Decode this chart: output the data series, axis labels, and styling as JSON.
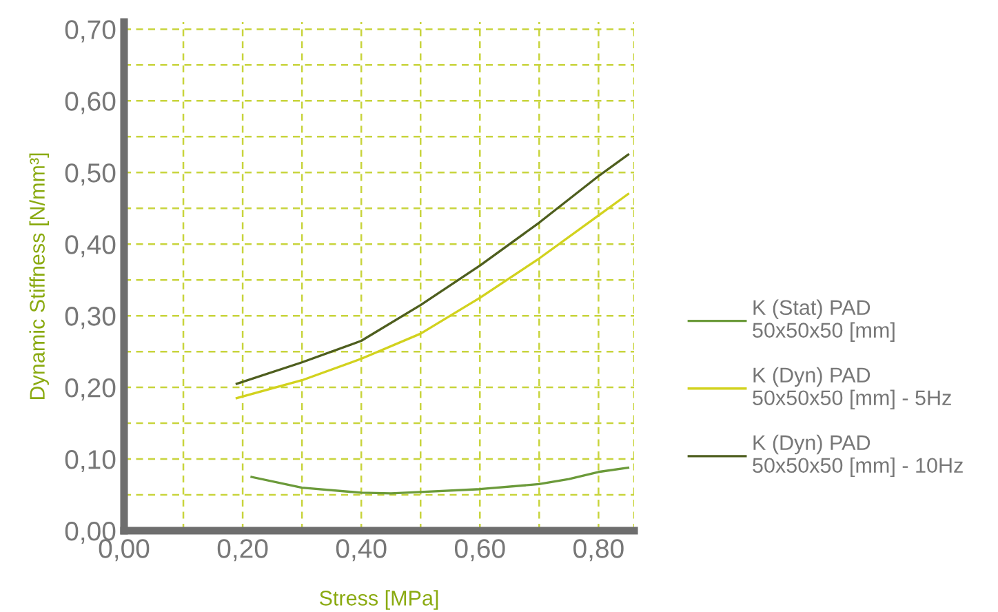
{
  "chart_data": {
    "type": "line",
    "xlabel": "Stress [MPa]",
    "ylabel": "Dynamic Stiffness [N/mm³]",
    "xlim": [
      0,
      0.86
    ],
    "ylim": [
      0,
      0.71
    ],
    "xticks": [
      {
        "value": 0,
        "label": "0,00"
      },
      {
        "value": 0.1,
        "label": null
      },
      {
        "value": 0.2,
        "label": "0,20"
      },
      {
        "value": 0.3,
        "label": null
      },
      {
        "value": 0.4,
        "label": "0,40"
      },
      {
        "value": 0.5,
        "label": null
      },
      {
        "value": 0.6,
        "label": "0,60"
      },
      {
        "value": 0.7,
        "label": null
      },
      {
        "value": 0.8,
        "label": "0,80"
      },
      {
        "value": 0.86,
        "label": null
      }
    ],
    "yticks": [
      {
        "value": 0,
        "label": "0,00"
      },
      {
        "value": 0.05,
        "label": null
      },
      {
        "value": 0.1,
        "label": "0,10"
      },
      {
        "value": 0.15,
        "label": null
      },
      {
        "value": 0.2,
        "label": "0,20"
      },
      {
        "value": 0.25,
        "label": null
      },
      {
        "value": 0.3,
        "label": "0,30"
      },
      {
        "value": 0.35,
        "label": null
      },
      {
        "value": 0.4,
        "label": "0,40"
      },
      {
        "value": 0.45,
        "label": null
      },
      {
        "value": 0.5,
        "label": "0,50"
      },
      {
        "value": 0.55,
        "label": null
      },
      {
        "value": 0.6,
        "label": "0,60"
      },
      {
        "value": 0.65,
        "label": null
      },
      {
        "value": 0.7,
        "label": "0,70"
      }
    ],
    "grid": true,
    "legend": "right",
    "line_style": "solid",
    "series": [
      {
        "name": "K (Stat) PAD\n50x50x50 [mm]",
        "color": "#6b9a3a",
        "x": [
          0.215,
          0.3,
          0.4,
          0.45,
          0.5,
          0.6,
          0.7,
          0.75,
          0.8,
          0.85
        ],
        "values": [
          0.075,
          0.06,
          0.053,
          0.052,
          0.054,
          0.058,
          0.065,
          0.072,
          0.082,
          0.088
        ]
      },
      {
        "name": "K (Dyn) PAD\n50x50x50 [mm] - 5Hz",
        "color": "#d2d21e",
        "x": [
          0.19,
          0.3,
          0.4,
          0.5,
          0.6,
          0.7,
          0.8,
          0.85
        ],
        "values": [
          0.185,
          0.21,
          0.24,
          0.275,
          0.325,
          0.38,
          0.44,
          0.47
        ]
      },
      {
        "name": "K (Dyn) PAD\n50x50x50 [mm] - 10Hz",
        "color": "#4e5e1e",
        "x": [
          0.19,
          0.3,
          0.4,
          0.5,
          0.6,
          0.7,
          0.8,
          0.85
        ],
        "values": [
          0.205,
          0.235,
          0.265,
          0.315,
          0.37,
          0.43,
          0.495,
          0.525
        ]
      }
    ]
  }
}
